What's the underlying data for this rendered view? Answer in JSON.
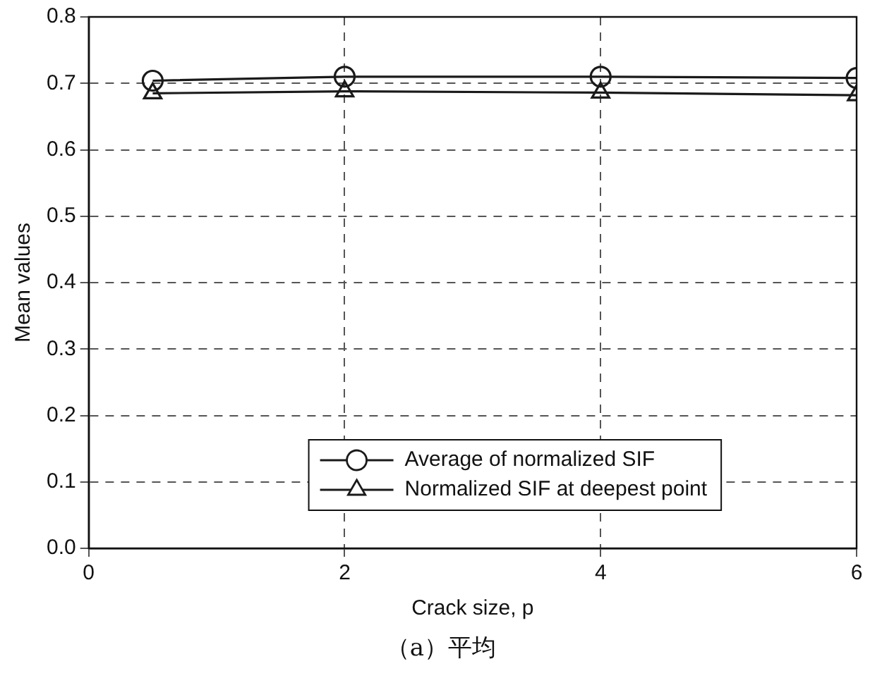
{
  "chart_data": {
    "type": "line",
    "xlabel": "Crack size, p",
    "ylabel": "Mean values",
    "x": [
      0.5,
      2,
      4,
      6
    ],
    "series": [
      {
        "name": "Average of normalized SIF",
        "color": "#1a1a1a",
        "values": [
          0.704,
          0.71,
          0.71,
          0.708
        ],
        "marker": "circle"
      },
      {
        "name": "Normalized SIF at deepest point",
        "color": "#1a1a1a",
        "values": [
          0.685,
          0.688,
          0.686,
          0.682
        ],
        "marker": "triangle"
      }
    ],
    "xlim": [
      0,
      6
    ],
    "xticks": [
      0,
      2,
      4,
      6
    ],
    "ylim": [
      0,
      0.8
    ],
    "yticks": [
      {
        "value": 0,
        "label": "0.0"
      },
      0.1,
      0.2,
      0.3,
      0.4,
      0.5,
      0.6,
      0.7,
      0.8
    ],
    "grid": true,
    "legend": "bottom",
    "line_style": "solid",
    "annotations": [
      "（a）平均"
    ]
  }
}
